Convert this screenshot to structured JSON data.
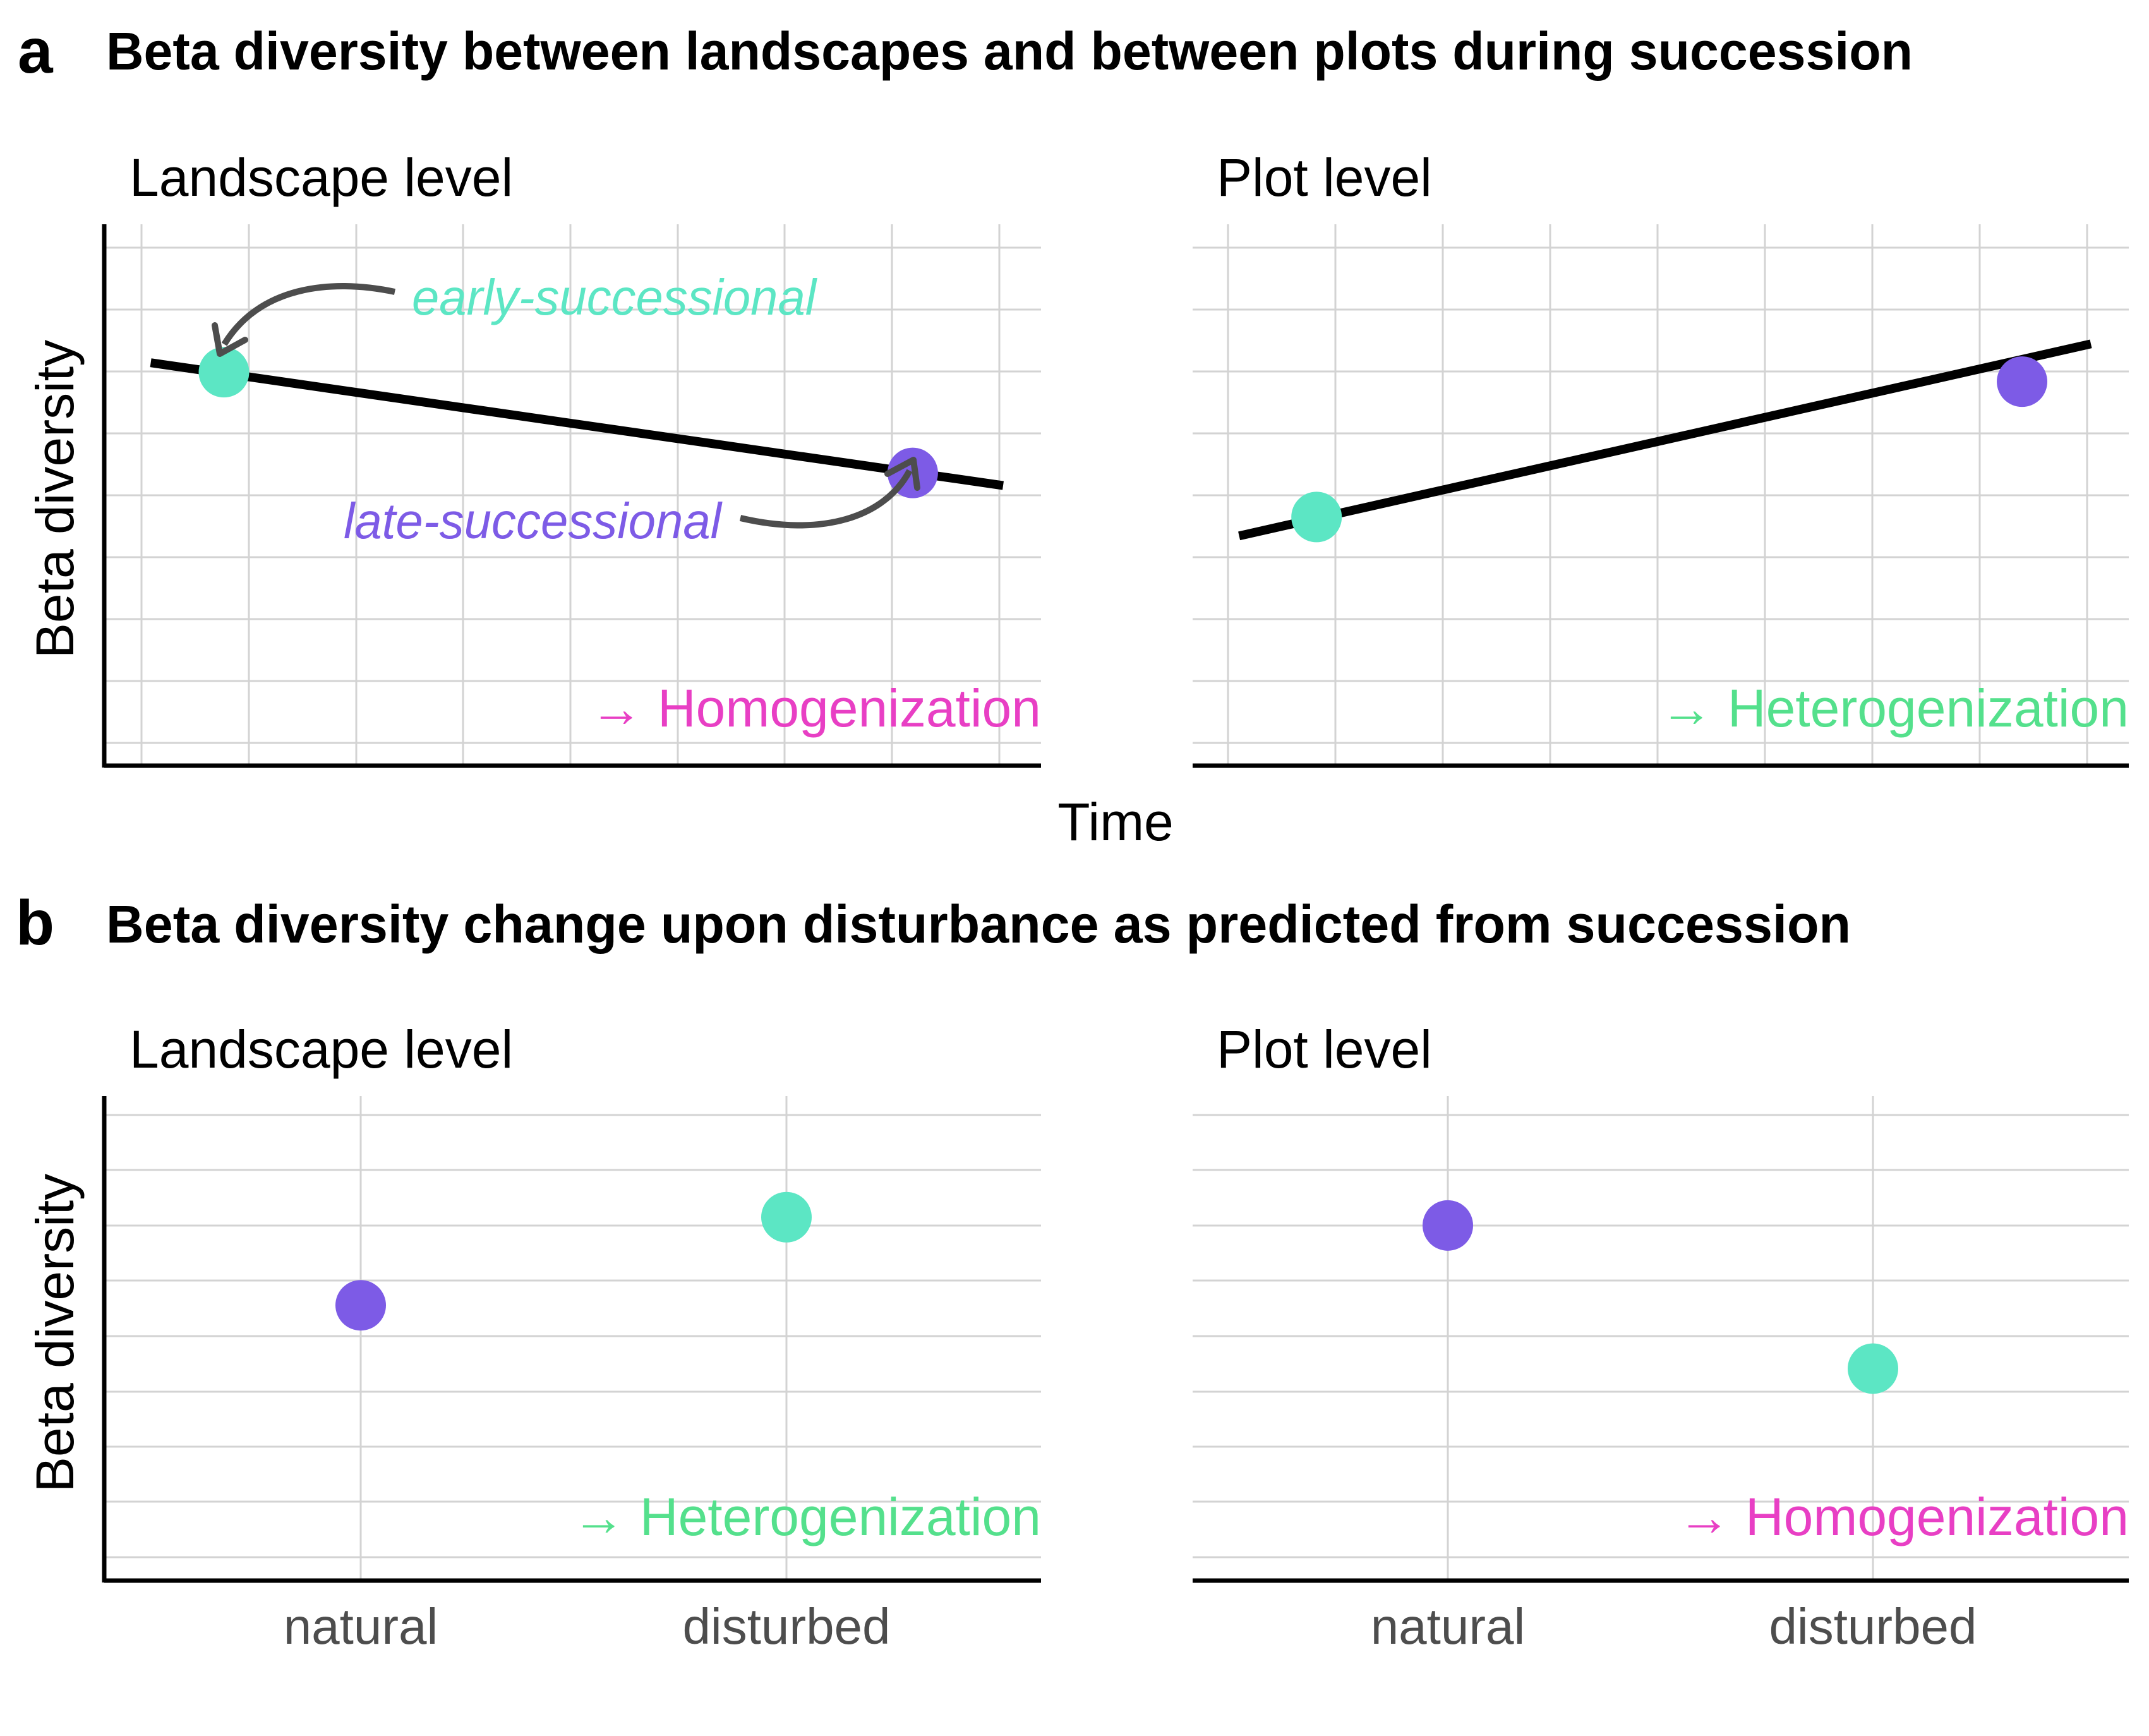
{
  "colors": {
    "early": "#5CE6C4",
    "late": "#7D5BE6",
    "homogenization": "#E83FC4",
    "heterogenization": "#54E08C",
    "line": "#000000",
    "arrow": "#4D4D4D",
    "grid": "#D3D3D3",
    "tick_text": "#4D4D4D"
  },
  "panel_a": {
    "letter": "a",
    "title": "Beta diversity between landscapes and between plots during succession",
    "y_axis_label": "Beta diversity",
    "x_axis_label": "Time",
    "annotations": {
      "early": "early-successional",
      "late": "late-successional"
    }
  },
  "panel_b": {
    "letter": "b",
    "title": "Beta diversity change upon disturbance as predicted from succession",
    "y_axis_label": "Beta diversity"
  },
  "chart_data": [
    {
      "id": "a-landscape",
      "type": "line",
      "title": "Landscape level",
      "xlabel": "Time",
      "ylabel": "Beta diversity",
      "xlim": [
        0,
        10
      ],
      "ylim": [
        0,
        8.6
      ],
      "grid": true,
      "line": {
        "x": [
          0.1,
          10.0
        ],
        "y": [
          6.4,
          4.45
        ]
      },
      "points": [
        {
          "label": "early-successional",
          "x": 0.95,
          "y": 6.25,
          "color": "#5CE6C4"
        },
        {
          "label": "late-successional",
          "x": 8.95,
          "y": 4.65,
          "color": "#7D5BE6"
        }
      ],
      "annotation": "→ Homogenization",
      "annotation_color": "#E83FC4"
    },
    {
      "id": "a-plot",
      "type": "line",
      "title": "Plot level",
      "xlabel": "Time",
      "ylabel": "",
      "xlim": [
        0,
        10
      ],
      "ylim": [
        0,
        8.6
      ],
      "grid": true,
      "line": {
        "x": [
          0.1,
          10.0
        ],
        "y": [
          3.65,
          6.7
        ]
      },
      "points": [
        {
          "label": "early",
          "x": 1.0,
          "y": 3.95,
          "color": "#5CE6C4"
        },
        {
          "label": "late",
          "x": 9.2,
          "y": 6.1,
          "color": "#7D5BE6"
        }
      ],
      "annotation": "→ Heterogenization",
      "annotation_color": "#54E08C"
    },
    {
      "id": "b-landscape",
      "type": "scatter",
      "title": "Landscape level",
      "xlabel": "",
      "ylabel": "Beta diversity",
      "categories": [
        "natural",
        "disturbed"
      ],
      "ylim": [
        0,
        8.8
      ],
      "grid": true,
      "points": [
        {
          "category": "natural",
          "y": 5.0,
          "color": "#7D5BE6"
        },
        {
          "category": "disturbed",
          "y": 6.6,
          "color": "#5CE6C4"
        }
      ],
      "annotation": "→ Heterogenization",
      "annotation_color": "#54E08C"
    },
    {
      "id": "b-plot",
      "type": "scatter",
      "title": "Plot level",
      "xlabel": "",
      "ylabel": "",
      "categories": [
        "natural",
        "disturbed"
      ],
      "ylim": [
        0,
        8.8
      ],
      "grid": true,
      "points": [
        {
          "category": "natural",
          "y": 6.45,
          "color": "#7D5BE6"
        },
        {
          "category": "disturbed",
          "y": 3.85,
          "color": "#5CE6C4"
        }
      ],
      "annotation": "→ Homogenization",
      "annotation_color": "#E83FC4"
    }
  ]
}
